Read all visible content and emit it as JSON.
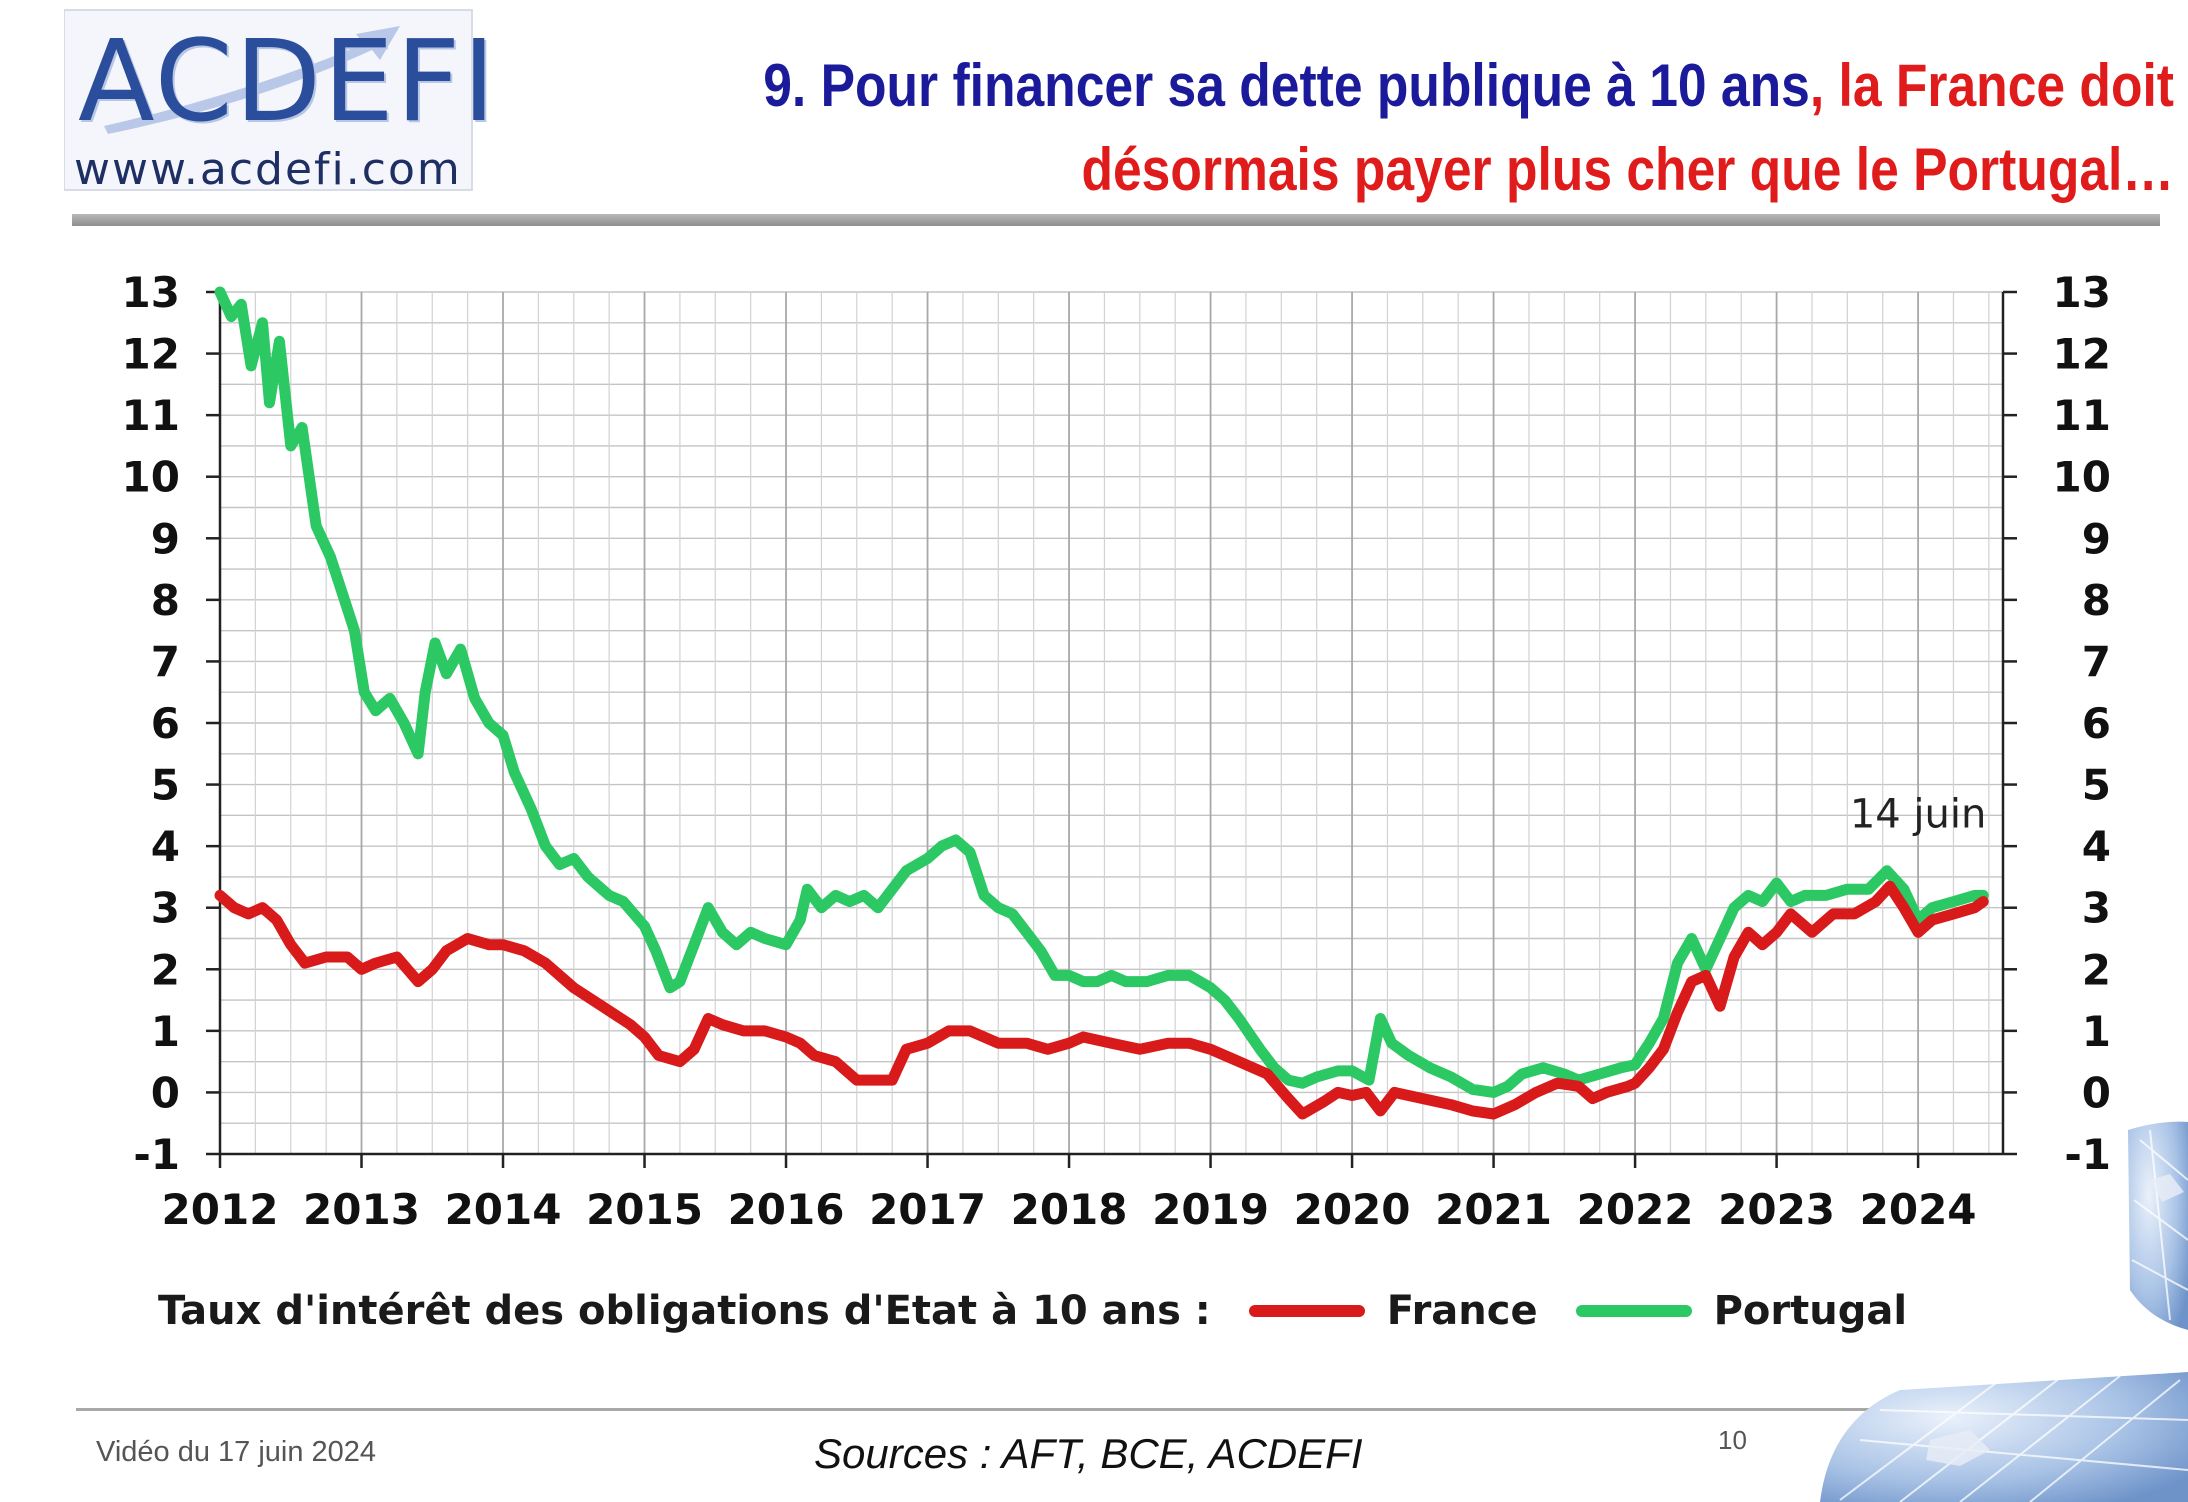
{
  "logo": {
    "name": "ACDEFI",
    "url": "www.acdefi.com"
  },
  "title": {
    "part1": "9. Pour financer sa dette publique à 10 ans",
    "part2": ", la France doit",
    "line2": "désormais payer plus cher que le Portugal…"
  },
  "legend": {
    "label": "Taux d'intérêt des obligations d'Etat à 10 ans :",
    "france": "France",
    "portugal": "Portugal"
  },
  "footer": {
    "video": "Vidéo du 17 juin 2024",
    "sources": "Sources : AFT, BCE, ACDEFI",
    "page": "10"
  },
  "chart_data": {
    "type": "line",
    "xlabel": "",
    "ylabel": "",
    "xlim": [
      2012,
      2024.6
    ],
    "ylim": [
      -1,
      13
    ],
    "yticks": [
      "13",
      "12",
      "11",
      "10",
      "9",
      "8",
      "7",
      "6",
      "5",
      "4",
      "3",
      "2",
      "1",
      "0",
      "-1"
    ],
    "xticks": [
      "2012",
      "2013",
      "2014",
      "2015",
      "2016",
      "2017",
      "2018",
      "2019",
      "2020",
      "2021",
      "2022",
      "2023",
      "2024"
    ],
    "grid": true,
    "legend_position": "bottom",
    "annotation": {
      "text": "14 juin",
      "x": 2024.0,
      "y": 4.5
    },
    "series": [
      {
        "name": "France",
        "color": "#d81a1a",
        "points": [
          [
            2012.0,
            3.2
          ],
          [
            2012.1,
            3.0
          ],
          [
            2012.2,
            2.9
          ],
          [
            2012.3,
            3.0
          ],
          [
            2012.4,
            2.8
          ],
          [
            2012.5,
            2.4
          ],
          [
            2012.6,
            2.1
          ],
          [
            2012.75,
            2.2
          ],
          [
            2012.9,
            2.2
          ],
          [
            2013.0,
            2.0
          ],
          [
            2013.1,
            2.1
          ],
          [
            2013.25,
            2.2
          ],
          [
            2013.4,
            1.8
          ],
          [
            2013.5,
            2.0
          ],
          [
            2013.6,
            2.3
          ],
          [
            2013.75,
            2.5
          ],
          [
            2013.9,
            2.4
          ],
          [
            2014.0,
            2.4
          ],
          [
            2014.15,
            2.3
          ],
          [
            2014.3,
            2.1
          ],
          [
            2014.5,
            1.7
          ],
          [
            2014.7,
            1.4
          ],
          [
            2014.9,
            1.1
          ],
          [
            2015.0,
            0.9
          ],
          [
            2015.1,
            0.6
          ],
          [
            2015.25,
            0.5
          ],
          [
            2015.35,
            0.7
          ],
          [
            2015.45,
            1.2
          ],
          [
            2015.55,
            1.1
          ],
          [
            2015.7,
            1.0
          ],
          [
            2015.85,
            1.0
          ],
          [
            2016.0,
            0.9
          ],
          [
            2016.1,
            0.8
          ],
          [
            2016.2,
            0.6
          ],
          [
            2016.35,
            0.5
          ],
          [
            2016.5,
            0.2
          ],
          [
            2016.6,
            0.2
          ],
          [
            2016.75,
            0.2
          ],
          [
            2016.85,
            0.7
          ],
          [
            2017.0,
            0.8
          ],
          [
            2017.15,
            1.0
          ],
          [
            2017.3,
            1.0
          ],
          [
            2017.5,
            0.8
          ],
          [
            2017.7,
            0.8
          ],
          [
            2017.85,
            0.7
          ],
          [
            2018.0,
            0.8
          ],
          [
            2018.1,
            0.9
          ],
          [
            2018.3,
            0.8
          ],
          [
            2018.5,
            0.7
          ],
          [
            2018.7,
            0.8
          ],
          [
            2018.85,
            0.8
          ],
          [
            2019.0,
            0.7
          ],
          [
            2019.2,
            0.5
          ],
          [
            2019.4,
            0.3
          ],
          [
            2019.55,
            -0.1
          ],
          [
            2019.65,
            -0.35
          ],
          [
            2019.8,
            -0.15
          ],
          [
            2019.9,
            0.0
          ],
          [
            2020.0,
            -0.05
          ],
          [
            2020.1,
            0.0
          ],
          [
            2020.2,
            -0.3
          ],
          [
            2020.3,
            0.0
          ],
          [
            2020.5,
            -0.1
          ],
          [
            2020.7,
            -0.2
          ],
          [
            2020.85,
            -0.3
          ],
          [
            2021.0,
            -0.35
          ],
          [
            2021.15,
            -0.2
          ],
          [
            2021.3,
            0.0
          ],
          [
            2021.45,
            0.15
          ],
          [
            2021.6,
            0.1
          ],
          [
            2021.7,
            -0.1
          ],
          [
            2021.8,
            0.0
          ],
          [
            2021.95,
            0.1
          ],
          [
            2022.0,
            0.15
          ],
          [
            2022.1,
            0.4
          ],
          [
            2022.2,
            0.7
          ],
          [
            2022.3,
            1.3
          ],
          [
            2022.4,
            1.8
          ],
          [
            2022.5,
            1.9
          ],
          [
            2022.6,
            1.4
          ],
          [
            2022.7,
            2.2
          ],
          [
            2022.8,
            2.6
          ],
          [
            2022.9,
            2.4
          ],
          [
            2023.0,
            2.6
          ],
          [
            2023.1,
            2.9
          ],
          [
            2023.25,
            2.6
          ],
          [
            2023.4,
            2.9
          ],
          [
            2023.55,
            2.9
          ],
          [
            2023.7,
            3.1
          ],
          [
            2023.8,
            3.35
          ],
          [
            2023.9,
            3.0
          ],
          [
            2024.0,
            2.6
          ],
          [
            2024.1,
            2.8
          ],
          [
            2024.25,
            2.9
          ],
          [
            2024.4,
            3.0
          ],
          [
            2024.46,
            3.1
          ]
        ]
      },
      {
        "name": "Portugal",
        "color": "#2bc864",
        "points": [
          [
            2012.0,
            13.0
          ],
          [
            2012.08,
            12.6
          ],
          [
            2012.15,
            12.8
          ],
          [
            2012.22,
            11.8
          ],
          [
            2012.3,
            12.5
          ],
          [
            2012.35,
            11.2
          ],
          [
            2012.42,
            12.2
          ],
          [
            2012.5,
            10.5
          ],
          [
            2012.58,
            10.8
          ],
          [
            2012.68,
            9.2
          ],
          [
            2012.78,
            8.7
          ],
          [
            2012.88,
            8.0
          ],
          [
            2012.95,
            7.5
          ],
          [
            2013.02,
            6.5
          ],
          [
            2013.1,
            6.2
          ],
          [
            2013.2,
            6.4
          ],
          [
            2013.3,
            6.0
          ],
          [
            2013.4,
            5.5
          ],
          [
            2013.45,
            6.5
          ],
          [
            2013.52,
            7.3
          ],
          [
            2013.6,
            6.8
          ],
          [
            2013.7,
            7.2
          ],
          [
            2013.8,
            6.4
          ],
          [
            2013.9,
            6.0
          ],
          [
            2014.0,
            5.8
          ],
          [
            2014.08,
            5.2
          ],
          [
            2014.2,
            4.6
          ],
          [
            2014.3,
            4.0
          ],
          [
            2014.4,
            3.7
          ],
          [
            2014.5,
            3.8
          ],
          [
            2014.6,
            3.5
          ],
          [
            2014.75,
            3.2
          ],
          [
            2014.85,
            3.1
          ],
          [
            2015.0,
            2.7
          ],
          [
            2015.08,
            2.3
          ],
          [
            2015.18,
            1.7
          ],
          [
            2015.25,
            1.8
          ],
          [
            2015.35,
            2.4
          ],
          [
            2015.45,
            3.0
          ],
          [
            2015.55,
            2.6
          ],
          [
            2015.65,
            2.4
          ],
          [
            2015.75,
            2.6
          ],
          [
            2015.85,
            2.5
          ],
          [
            2016.0,
            2.4
          ],
          [
            2016.1,
            2.8
          ],
          [
            2016.15,
            3.3
          ],
          [
            2016.25,
            3.0
          ],
          [
            2016.35,
            3.2
          ],
          [
            2016.45,
            3.1
          ],
          [
            2016.55,
            3.2
          ],
          [
            2016.65,
            3.0
          ],
          [
            2016.75,
            3.3
          ],
          [
            2016.85,
            3.6
          ],
          [
            2017.0,
            3.8
          ],
          [
            2017.1,
            4.0
          ],
          [
            2017.2,
            4.1
          ],
          [
            2017.3,
            3.9
          ],
          [
            2017.4,
            3.2
          ],
          [
            2017.5,
            3.0
          ],
          [
            2017.6,
            2.9
          ],
          [
            2017.7,
            2.6
          ],
          [
            2017.8,
            2.3
          ],
          [
            2017.9,
            1.9
          ],
          [
            2018.0,
            1.9
          ],
          [
            2018.1,
            1.8
          ],
          [
            2018.2,
            1.8
          ],
          [
            2018.3,
            1.9
          ],
          [
            2018.4,
            1.8
          ],
          [
            2018.55,
            1.8
          ],
          [
            2018.7,
            1.9
          ],
          [
            2018.85,
            1.9
          ],
          [
            2019.0,
            1.7
          ],
          [
            2019.1,
            1.5
          ],
          [
            2019.2,
            1.2
          ],
          [
            2019.35,
            0.7
          ],
          [
            2019.45,
            0.4
          ],
          [
            2019.55,
            0.2
          ],
          [
            2019.65,
            0.15
          ],
          [
            2019.75,
            0.25
          ],
          [
            2019.9,
            0.35
          ],
          [
            2020.0,
            0.35
          ],
          [
            2020.12,
            0.2
          ],
          [
            2020.2,
            1.2
          ],
          [
            2020.28,
            0.8
          ],
          [
            2020.4,
            0.6
          ],
          [
            2020.55,
            0.4
          ],
          [
            2020.7,
            0.25
          ],
          [
            2020.85,
            0.05
          ],
          [
            2021.0,
            0.0
          ],
          [
            2021.1,
            0.1
          ],
          [
            2021.2,
            0.3
          ],
          [
            2021.35,
            0.4
          ],
          [
            2021.5,
            0.3
          ],
          [
            2021.6,
            0.2
          ],
          [
            2021.75,
            0.3
          ],
          [
            2021.9,
            0.4
          ],
          [
            2022.0,
            0.45
          ],
          [
            2022.1,
            0.8
          ],
          [
            2022.2,
            1.2
          ],
          [
            2022.3,
            2.1
          ],
          [
            2022.4,
            2.5
          ],
          [
            2022.5,
            2.0
          ],
          [
            2022.6,
            2.5
          ],
          [
            2022.7,
            3.0
          ],
          [
            2022.8,
            3.2
          ],
          [
            2022.9,
            3.1
          ],
          [
            2023.0,
            3.4
          ],
          [
            2023.1,
            3.1
          ],
          [
            2023.2,
            3.2
          ],
          [
            2023.35,
            3.2
          ],
          [
            2023.5,
            3.3
          ],
          [
            2023.65,
            3.3
          ],
          [
            2023.78,
            3.6
          ],
          [
            2023.9,
            3.3
          ],
          [
            2024.0,
            2.8
          ],
          [
            2024.1,
            3.0
          ],
          [
            2024.25,
            3.1
          ],
          [
            2024.4,
            3.2
          ],
          [
            2024.46,
            3.2
          ]
        ]
      }
    ]
  }
}
